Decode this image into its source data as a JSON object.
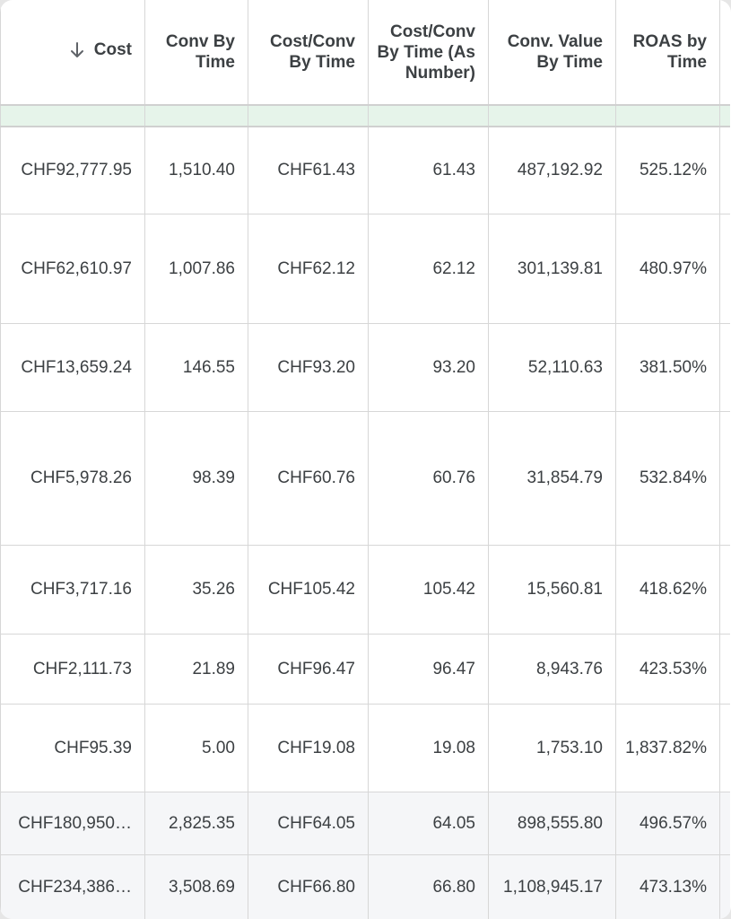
{
  "table": {
    "sort_column": "Cost",
    "headers": [
      "Cost",
      "Conv By Time",
      "Cost/Conv By Time",
      "Cost/Conv By Time (As Number)",
      "Conv. Value By Time",
      "ROAS by Time"
    ],
    "rows": [
      [
        "CHF92,777.95",
        "1,510.40",
        "CHF61.43",
        "61.43",
        "487,192.92",
        "525.12%"
      ],
      [
        "CHF62,610.97",
        "1,007.86",
        "CHF62.12",
        "62.12",
        "301,139.81",
        "480.97%"
      ],
      [
        "CHF13,659.24",
        "146.55",
        "CHF93.20",
        "93.20",
        "52,110.63",
        "381.50%"
      ],
      [
        "CHF5,978.26",
        "98.39",
        "CHF60.76",
        "60.76",
        "31,854.79",
        "532.84%"
      ],
      [
        "CHF3,717.16",
        "35.26",
        "CHF105.42",
        "105.42",
        "15,560.81",
        "418.62%"
      ],
      [
        "CHF2,111.73",
        "21.89",
        "CHF96.47",
        "96.47",
        "8,943.76",
        "423.53%"
      ],
      [
        "CHF95.39",
        "5.00",
        "CHF19.08",
        "19.08",
        "1,753.10",
        "1,837.82%"
      ]
    ],
    "totals": [
      [
        "CHF180,950…",
        "2,825.35",
        "CHF64.05",
        "64.05",
        "898,555.80",
        "496.57%"
      ],
      [
        "CHF234,386…",
        "3,508.69",
        "CHF66.80",
        "66.80",
        "1,108,945.17",
        "473.13%"
      ]
    ]
  }
}
